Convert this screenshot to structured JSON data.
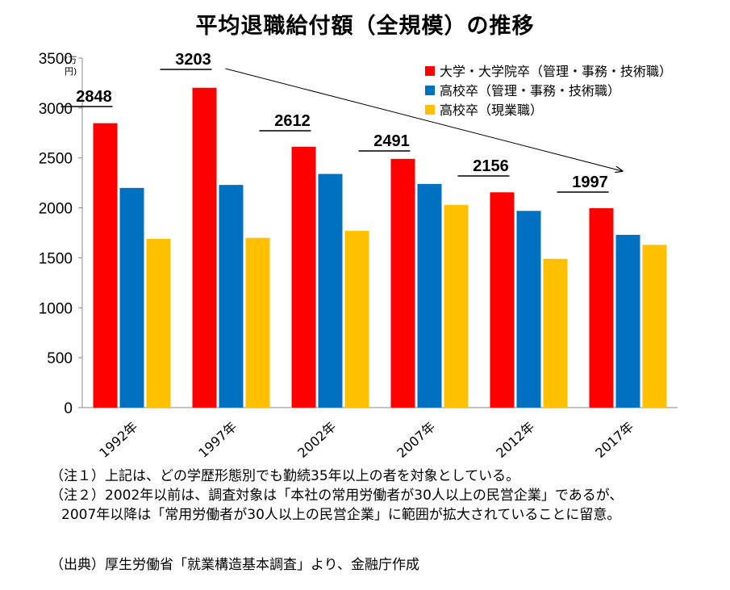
{
  "title": "平均退職給付額（全規模）の推移",
  "chart_data": {
    "type": "bar",
    "title": "平均退職給付額（全規模）の推移",
    "ylabel": "（万円）",
    "ylim": [
      0,
      3500
    ],
    "yticks": [
      0,
      500,
      1000,
      1500,
      2000,
      2500,
      3000,
      3500
    ],
    "grid": false,
    "legend_position": "top-right",
    "categories": [
      "1992年",
      "1997年",
      "2002年",
      "2007年",
      "2012年",
      "2017年"
    ],
    "series": [
      {
        "name": "大学・大学院卒（管理・事務・技術職）",
        "color": "#ff0000",
        "values": [
          2848,
          3203,
          2612,
          2491,
          2156,
          1997
        ]
      },
      {
        "name": "高校卒（管理・事務・技術職）",
        "color": "#0070c0",
        "values": [
          2200,
          2230,
          2340,
          2240,
          1970,
          1730
        ]
      },
      {
        "name": "高校卒（現業職）",
        "color": "#ffc000",
        "values": [
          1690,
          1700,
          1770,
          2030,
          1490,
          1630
        ]
      }
    ],
    "annotations": [
      "2848",
      "3203",
      "2612",
      "2491",
      "2156",
      "1997"
    ],
    "trend_arrow": {
      "from": "1997年",
      "to": "2017年"
    }
  },
  "notes": {
    "note1": "（注１）上記は、どの学歴形態別でも勤続35年以上の者を対象としている。",
    "note2_line1": "（注２）2002年以前は、調査対象は「本社の常用労働者が30人以上の民営企業」であるが、",
    "note2_line2": "2007年以降は「常用労働者が30人以上の民営企業」に範囲が拡大されていることに留意。",
    "source": "（出典）厚生労働省「就業構造基本調査」より、金融庁作成"
  }
}
